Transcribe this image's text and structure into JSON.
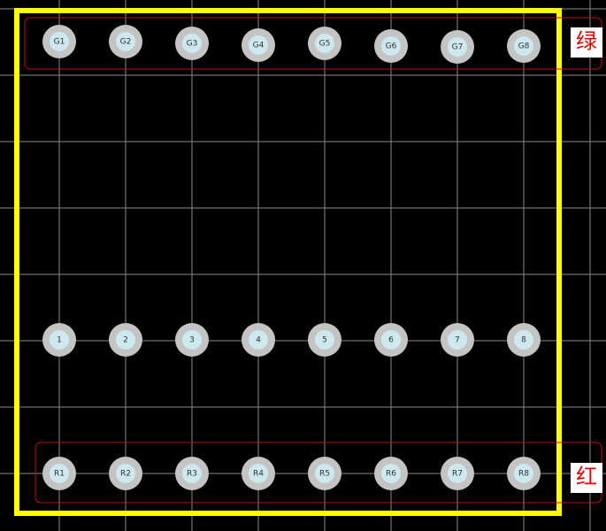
{
  "rows": [
    {
      "label": "绿",
      "pads": [
        "G1",
        "G2",
        "G3",
        "G4",
        "G5",
        "G6",
        "G7",
        "G8"
      ]
    },
    {
      "pads": [
        "1",
        "2",
        "3",
        "4",
        "5",
        "6",
        "7",
        "8"
      ]
    },
    {
      "label": "红",
      "pads": [
        "R1",
        "R2",
        "R3",
        "R4",
        "R5",
        "R6",
        "R7",
        "R8"
      ]
    }
  ]
}
